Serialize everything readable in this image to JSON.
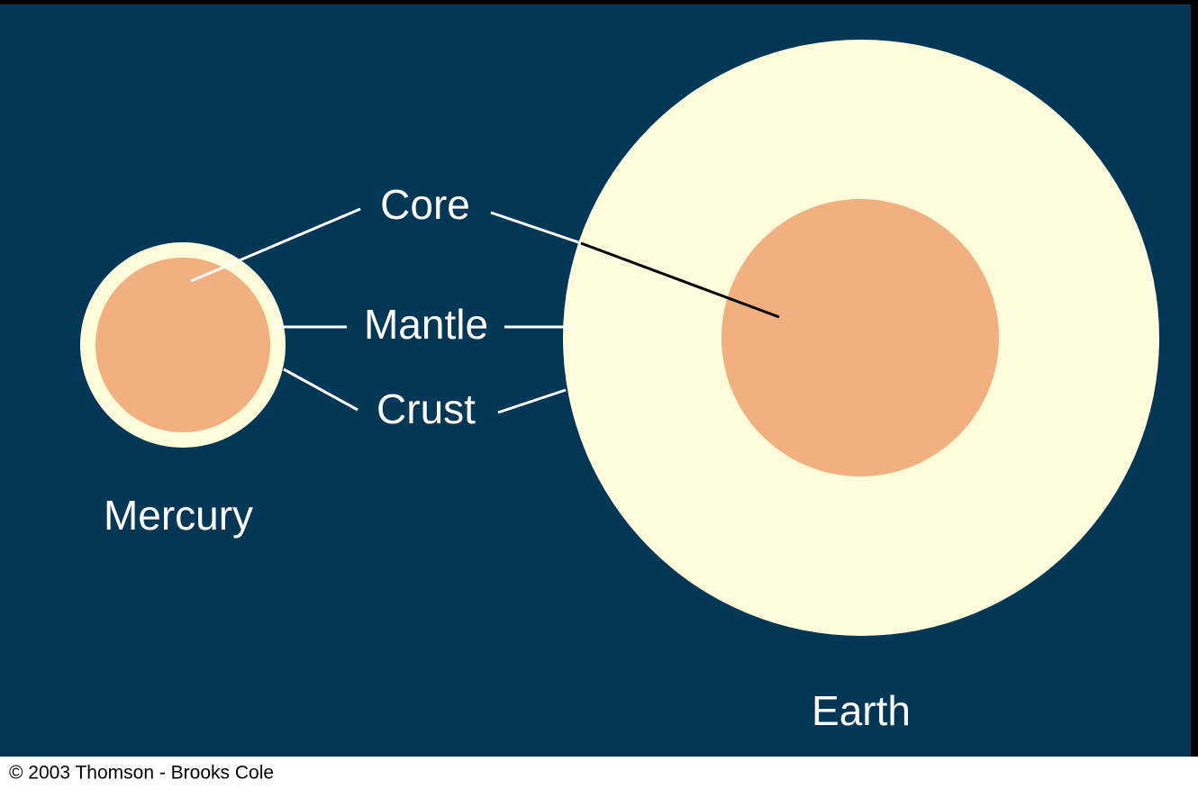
{
  "layers": {
    "core": "Core",
    "mantle": "Mantle",
    "crust": "Crust"
  },
  "planets": [
    {
      "name": "Mercury"
    },
    {
      "name": "Earth"
    }
  ],
  "footer": {
    "copyright": "© 2003 Thomson - Brooks Cole"
  }
}
